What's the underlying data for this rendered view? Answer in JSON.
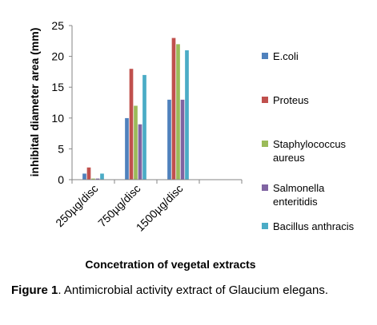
{
  "chart_data": {
    "type": "bar",
    "categories": [
      "250µg/disc",
      "750µg/disc",
      "1500µg/disc"
    ],
    "series": [
      {
        "name": "E.coli",
        "color": "#4F81BD",
        "values": [
          1,
          10,
          13
        ]
      },
      {
        "name": "Proteus",
        "color": "#C0504D",
        "values": [
          2,
          18,
          23
        ]
      },
      {
        "name": "Staphylococcus aureus",
        "color": "#9BBB59",
        "values": [
          0.2,
          12,
          22
        ]
      },
      {
        "name": "Salmonella enteritidis",
        "color": "#8064A2",
        "values": [
          0.2,
          9,
          13
        ]
      },
      {
        "name": "Bacillus anthracis",
        "color": "#4BACC6",
        "values": [
          1,
          17,
          21
        ]
      }
    ],
    "legend_lines": [
      [
        "E.coli"
      ],
      [
        "Proteus"
      ],
      [
        "Staphylococcus",
        "aureus"
      ],
      [
        "Salmonella",
        "enteritidis"
      ],
      [
        "Bacillus anthracis"
      ]
    ],
    "xlabel": "Concetration of vegetal extracts",
    "ylabel": "inhibital diameter area (mm)",
    "ylim": [
      0,
      25
    ],
    "yticks": [
      0,
      5,
      10,
      15,
      20,
      25
    ],
    "legend_position": "right",
    "grid": false
  },
  "caption": {
    "label": "Figure 1",
    "text": ". Antimicrobial activity extract of Glaucium elegans."
  }
}
